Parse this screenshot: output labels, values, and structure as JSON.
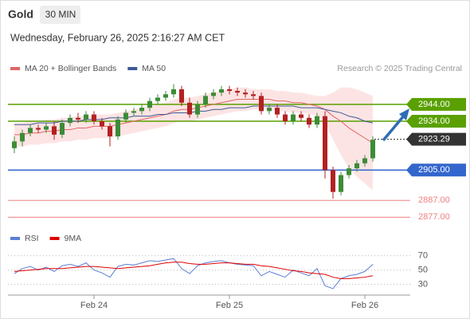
{
  "header": {
    "title": "Gold",
    "interval": "30 MIN",
    "date": "Wednesday, February 26, 2025 2:16:27 AM CET",
    "credit": "Research © 2025 Trading Central"
  },
  "chart_data": [
    {
      "type": "candlestick",
      "up_color": "#3d8b37",
      "down_color": "#b22222",
      "band_fill": "#fde4e4",
      "ylim": [
        2871,
        2961
      ],
      "open": [
        2918,
        2922,
        2927,
        2930,
        2929,
        2931,
        2926,
        2933,
        2936,
        2935,
        2938,
        2934,
        2931,
        2925,
        2935,
        2939,
        2940,
        2942,
        2946,
        2948,
        2950,
        2953,
        2945,
        2938,
        2944,
        2949,
        2951,
        2953,
        2952,
        2951,
        2950,
        2949,
        2940,
        2942,
        2938,
        2934,
        2938,
        2936,
        2932,
        2937,
        2905,
        2892,
        2902,
        2906,
        2909,
        2912
      ],
      "high": [
        2925,
        2929,
        2932,
        2932,
        2933,
        2934,
        2935,
        2938,
        2939,
        2940,
        2940,
        2936,
        2933,
        2937,
        2941,
        2942,
        2944,
        2948,
        2950,
        2952,
        2956,
        2955,
        2948,
        2946,
        2951,
        2953,
        2955,
        2955,
        2954,
        2953,
        2952,
        2951,
        2944,
        2944,
        2940,
        2940,
        2940,
        2938,
        2939,
        2940,
        2907,
        2904,
        2908,
        2911,
        2914,
        2925
      ],
      "low": [
        2915,
        2919,
        2925,
        2927,
        2927,
        2923,
        2924,
        2931,
        2933,
        2933,
        2932,
        2929,
        2919,
        2923,
        2933,
        2937,
        2938,
        2940,
        2944,
        2946,
        2948,
        2943,
        2936,
        2936,
        2942,
        2947,
        2949,
        2950,
        2949,
        2948,
        2947,
        2938,
        2938,
        2936,
        2932,
        2932,
        2934,
        2930,
        2930,
        2900,
        2888,
        2890,
        2900,
        2904,
        2907,
        2910
      ],
      "close": [
        2922,
        2927,
        2930,
        2929,
        2931,
        2926,
        2933,
        2936,
        2935,
        2938,
        2934,
        2931,
        2925,
        2935,
        2939,
        2940,
        2942,
        2946,
        2948,
        2950,
        2953,
        2945,
        2938,
        2944,
        2949,
        2951,
        2953,
        2952,
        2951,
        2950,
        2949,
        2940,
        2942,
        2938,
        2934,
        2938,
        2936,
        2932,
        2937,
        2905,
        2892,
        2902,
        2906,
        2909,
        2912,
        2923
      ],
      "series": [
        {
          "name": "MA 20 + Bollinger Bands",
          "color": "#e06666",
          "values": [
            2926,
            2926,
            2927,
            2927,
            2928,
            2928,
            2929,
            2929,
            2930,
            2930,
            2931,
            2931,
            2931,
            2932,
            2933,
            2934,
            2935,
            2936,
            2937,
            2938,
            2940,
            2941,
            2941,
            2942,
            2943,
            2944,
            2945,
            2946,
            2947,
            2947,
            2947,
            2947,
            2947,
            2946,
            2946,
            2945,
            2945,
            2944,
            2943,
            2941,
            2937,
            2934,
            2930,
            2927,
            2924,
            2921
          ],
          "upper": [
            2933,
            2933,
            2934,
            2934,
            2935,
            2935,
            2936,
            2936,
            2937,
            2937,
            2938,
            2938,
            2938,
            2939,
            2940,
            2941,
            2942,
            2943,
            2944,
            2945,
            2947,
            2948,
            2948,
            2949,
            2950,
            2951,
            2952,
            2953,
            2954,
            2954,
            2953,
            2953,
            2953,
            2952,
            2952,
            2951,
            2951,
            2950,
            2949,
            2949,
            2951,
            2954,
            2954,
            2953,
            2951,
            2949
          ],
          "lower": [
            2919,
            2919,
            2920,
            2920,
            2921,
            2921,
            2922,
            2922,
            2923,
            2923,
            2924,
            2924,
            2924,
            2925,
            2926,
            2927,
            2928,
            2929,
            2930,
            2931,
            2933,
            2934,
            2934,
            2935,
            2936,
            2937,
            2938,
            2939,
            2940,
            2940,
            2941,
            2941,
            2941,
            2940,
            2940,
            2939,
            2939,
            2938,
            2937,
            2933,
            2923,
            2914,
            2906,
            2901,
            2897,
            2893
          ]
        },
        {
          "name": "MA 50",
          "color": "#3d5a99",
          "values": [
            2932,
            2932,
            2932,
            2933,
            2933,
            2933,
            2934,
            2934,
            2934,
            2935,
            2935,
            2935,
            2936,
            2936,
            2936,
            2937,
            2937,
            2937,
            2938,
            2938,
            2939,
            2939,
            2939,
            2940,
            2940,
            2941,
            2941,
            2942,
            2942,
            2942,
            2943,
            2943,
            2943,
            2943,
            2943,
            2943,
            2942,
            2942,
            2942,
            2941,
            2940,
            2939,
            2937,
            2936,
            2934,
            2933
          ]
        }
      ],
      "levels": [
        {
          "value": 2944,
          "label": "2944.00",
          "color": "#5aa000",
          "style": "box"
        },
        {
          "value": 2934,
          "label": "2934.00",
          "color": "#5aa000",
          "style": "box"
        },
        {
          "value": 2923.29,
          "label": "2923.29",
          "color": "#333333",
          "style": "current"
        },
        {
          "value": 2905,
          "label": "2905.00",
          "color": "#3366cc",
          "style": "box"
        },
        {
          "value": 2887,
          "label": "2887.00",
          "color": "#f08080",
          "style": "text"
        },
        {
          "value": 2877,
          "label": "2877.00",
          "color": "#f08080",
          "style": "text"
        }
      ]
    },
    {
      "type": "line",
      "ylim": [
        15,
        93
      ],
      "yticks": [
        30,
        50,
        70
      ],
      "categories": [
        null,
        null,
        null,
        null,
        null,
        null,
        null,
        null,
        null,
        null,
        "Feb 24",
        null,
        null,
        null,
        null,
        null,
        null,
        null,
        null,
        null,
        null,
        null,
        null,
        null,
        null,
        null,
        null,
        "Feb 25",
        null,
        null,
        null,
        null,
        null,
        null,
        null,
        null,
        null,
        null,
        null,
        null,
        null,
        null,
        null,
        null,
        "Feb 26",
        null
      ],
      "series": [
        {
          "name": "RSI",
          "color": "#5b7fd6",
          "values": [
            45,
            52,
            55,
            50,
            54,
            48,
            56,
            58,
            55,
            60,
            50,
            46,
            40,
            55,
            58,
            57,
            60,
            63,
            62,
            64,
            66,
            52,
            45,
            56,
            60,
            62,
            63,
            60,
            58,
            57,
            56,
            42,
            48,
            44,
            40,
            50,
            46,
            42,
            52,
            28,
            24,
            38,
            42,
            44,
            48,
            58
          ]
        },
        {
          "name": "9MA",
          "color": "#e00000",
          "values": [
            48,
            49,
            50,
            51,
            52,
            52,
            52,
            53,
            54,
            55,
            55,
            54,
            53,
            52,
            53,
            54,
            55,
            56,
            58,
            60,
            61,
            61,
            59,
            58,
            58,
            59,
            60,
            60,
            59,
            58,
            58,
            56,
            55,
            53,
            51,
            49,
            48,
            46,
            45,
            44,
            40,
            38,
            38,
            39,
            40,
            42
          ]
        }
      ]
    }
  ]
}
